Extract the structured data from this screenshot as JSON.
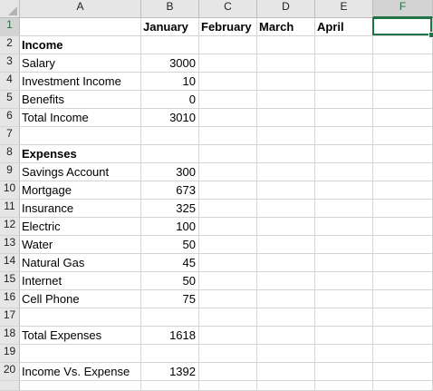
{
  "columns": [
    "A",
    "B",
    "C",
    "D",
    "E",
    "F"
  ],
  "active_cell": "F1",
  "header_row": {
    "row": "1",
    "months": [
      "January",
      "February",
      "March",
      "April"
    ]
  },
  "rows": [
    {
      "num": "2",
      "label": "Income",
      "value": ""
    },
    {
      "num": "3",
      "label": "Salary",
      "value": "3000"
    },
    {
      "num": "4",
      "label": "Investment Income",
      "value": "10"
    },
    {
      "num": "5",
      "label": "Benefits",
      "value": "0"
    },
    {
      "num": "6",
      "label": "Total Income",
      "value": "3010"
    },
    {
      "num": "7",
      "label": "",
      "value": ""
    },
    {
      "num": "8",
      "label": "Expenses",
      "value": ""
    },
    {
      "num": "9",
      "label": "Savings Account",
      "value": "300"
    },
    {
      "num": "10",
      "label": "Mortgage",
      "value": "673"
    },
    {
      "num": "11",
      "label": "Insurance",
      "value": "325"
    },
    {
      "num": "12",
      "label": "Electric",
      "value": "100"
    },
    {
      "num": "13",
      "label": "Water",
      "value": "50"
    },
    {
      "num": "14",
      "label": "Natural Gas",
      "value": "45"
    },
    {
      "num": "15",
      "label": "Internet",
      "value": "50"
    },
    {
      "num": "16",
      "label": "Cell Phone",
      "value": "75"
    },
    {
      "num": "17",
      "label": "",
      "value": ""
    },
    {
      "num": "18",
      "label": "Total Expenses",
      "value": "1618"
    },
    {
      "num": "19",
      "label": "",
      "value": ""
    },
    {
      "num": "20",
      "label": "Income Vs. Expense",
      "value": "1392"
    }
  ],
  "colors": {
    "accent": "#217346",
    "header_bg": "#e6e6e6",
    "gridline": "#d4d4d4"
  }
}
